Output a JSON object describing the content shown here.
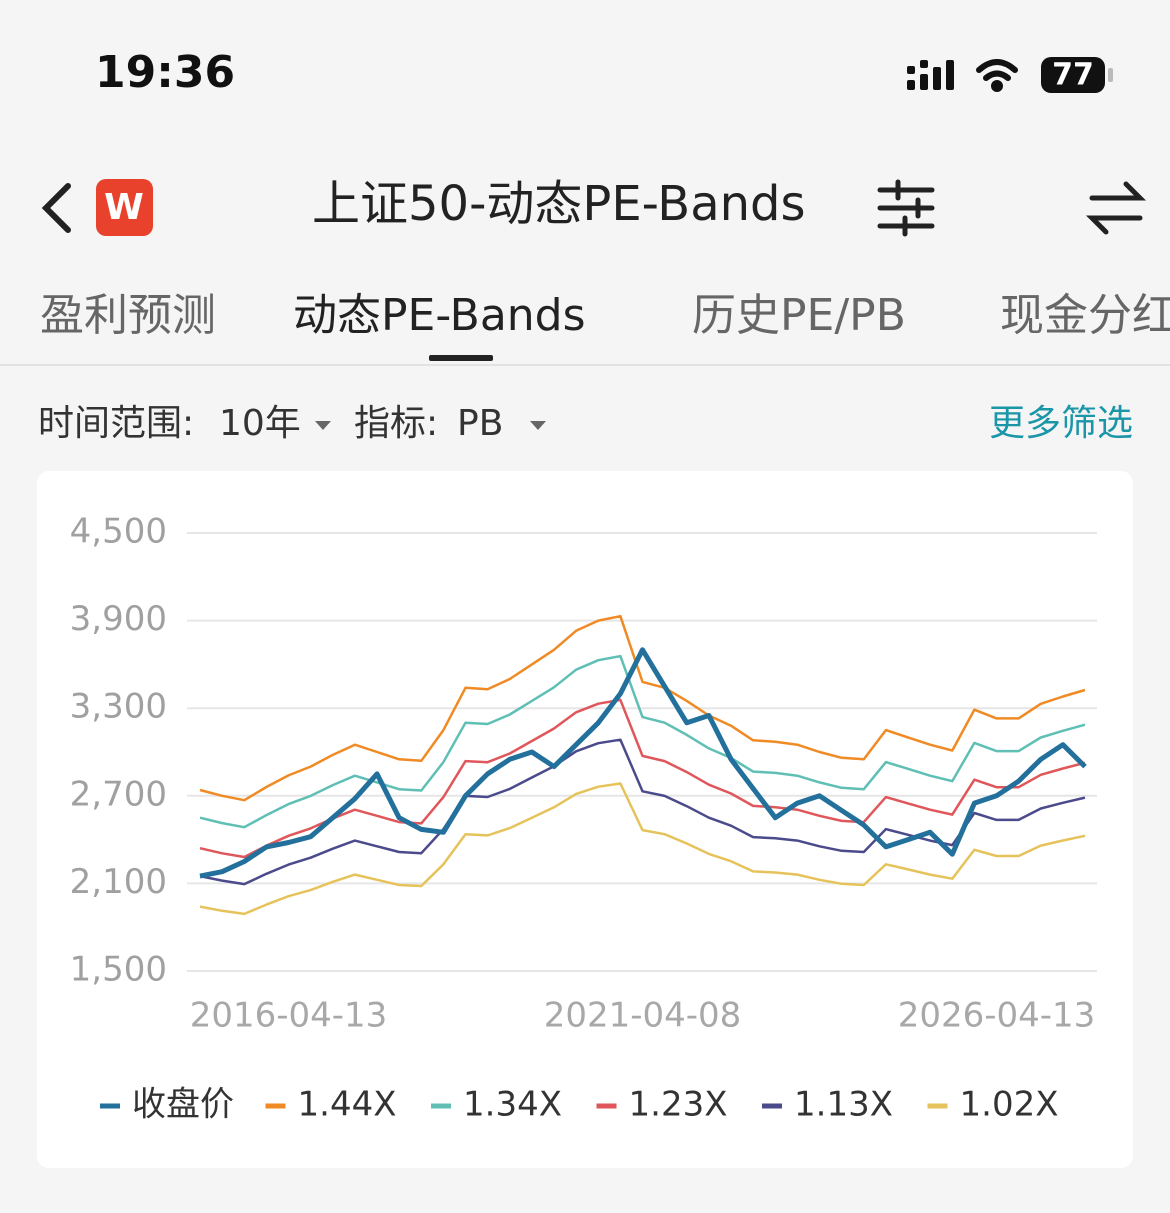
{
  "status_bar": {
    "time": "19:36",
    "battery": "77"
  },
  "header": {
    "app_icon": "W",
    "title": "上证50-动态PE-Bands"
  },
  "tabs": [
    "盈利预测",
    "动态PE-Bands",
    "历史PE/PB",
    "现金分红"
  ],
  "filters": {
    "time_range_label": "时间范围:",
    "time_range": "10年",
    "metric_label": "指标:",
    "metric": "PB",
    "more": "更多筛选"
  },
  "chart_data": {
    "type": "line",
    "categories": [
      null,
      null,
      null,
      null,
      "2016-04-13",
      null,
      null,
      null,
      null,
      null,
      null,
      null,
      null,
      null,
      null,
      null,
      null,
      null,
      null,
      null,
      "2021-04-08",
      null,
      null,
      null,
      null,
      null,
      null,
      null,
      null,
      null,
      null,
      null,
      null,
      null,
      null,
      null,
      "2026-04-13",
      null,
      null,
      null,
      null
    ],
    "ylim": [
      1500,
      4500
    ],
    "yticks": [
      {
        "value": 1500,
        "label": "1,500"
      },
      {
        "value": 2100,
        "label": "2,100"
      },
      {
        "value": 2700,
        "label": "2,700"
      },
      {
        "value": 3300,
        "label": "3,300"
      },
      {
        "value": 3900,
        "label": "3,900"
      },
      {
        "value": 4500,
        "label": "4,500"
      }
    ],
    "grid": true,
    "legend": "bottom",
    "series": [
      {
        "name": "收盘价",
        "color": "#22709b",
        "values": [
          2150,
          2180,
          2250,
          2350,
          2380,
          2420,
          2550,
          2680,
          2850,
          2550,
          2470,
          2450,
          2700,
          2850,
          2950,
          3000,
          2900,
          3050,
          3200,
          3400,
          3700,
          3450,
          3200,
          3250,
          2950,
          2750,
          2550,
          2650,
          2700,
          2600,
          2500,
          2350,
          2400,
          2450,
          2300,
          2650,
          2700,
          2800,
          2950,
          3050,
          2900
        ]
      },
      {
        "name": "1.44X",
        "color": "#f08a24",
        "values": [
          2740,
          2700,
          2670,
          2760,
          2840,
          2900,
          2980,
          3050,
          3000,
          2950,
          2940,
          3150,
          3440,
          3430,
          3500,
          3600,
          3700,
          3830,
          3900,
          3930,
          3480,
          3440,
          3350,
          3250,
          3180,
          3080,
          3070,
          3050,
          3000,
          2960,
          2950,
          3150,
          3100,
          3050,
          3010,
          3290,
          3230,
          3230,
          3330,
          3380,
          3425
        ]
      },
      {
        "name": "1.34X",
        "color": "#5fbfb5",
        "values": [
          2550,
          2513,
          2485,
          2568,
          2643,
          2699,
          2773,
          2838,
          2792,
          2745,
          2736,
          2931,
          3201,
          3192,
          3257,
          3350,
          3443,
          3564,
          3629,
          3657,
          3239,
          3201,
          3117,
          3025,
          2959,
          2866,
          2857,
          2838,
          2792,
          2755,
          2745,
          2931,
          2885,
          2838,
          2801,
          3062,
          3006,
          3006,
          3099,
          3145,
          3187
        ]
      },
      {
        "name": "1.23X",
        "color": "#e0575b",
        "values": [
          2341,
          2306,
          2281,
          2358,
          2426,
          2477,
          2545,
          2605,
          2563,
          2520,
          2511,
          2691,
          2938,
          2930,
          2990,
          3075,
          3161,
          3272,
          3331,
          3357,
          2973,
          2938,
          2862,
          2776,
          2716,
          2631,
          2622,
          2605,
          2563,
          2528,
          2520,
          2691,
          2648,
          2605,
          2571,
          2810,
          2759,
          2759,
          2844,
          2887,
          2926
        ]
      },
      {
        "name": "1.13X",
        "color": "#4b4b8c",
        "values": [
          2150,
          2119,
          2095,
          2166,
          2229,
          2276,
          2338,
          2393,
          2354,
          2315,
          2307,
          2472,
          2699,
          2692,
          2747,
          2825,
          2903,
          3005,
          3060,
          3084,
          2731,
          2699,
          2629,
          2550,
          2495,
          2417,
          2409,
          2393,
          2354,
          2323,
          2315,
          2472,
          2433,
          2393,
          2362,
          2582,
          2535,
          2535,
          2613,
          2652,
          2688
        ]
      },
      {
        "name": "1.02X",
        "color": "#e6c35a",
        "values": [
          1941,
          1912,
          1891,
          1955,
          2012,
          2054,
          2111,
          2160,
          2125,
          2089,
          2082,
          2231,
          2437,
          2429,
          2479,
          2550,
          2621,
          2713,
          2762,
          2784,
          2465,
          2437,
          2373,
          2302,
          2252,
          2182,
          2175,
          2160,
          2125,
          2097,
          2089,
          2231,
          2196,
          2160,
          2132,
          2330,
          2288,
          2288,
          2359,
          2394,
          2426
        ]
      }
    ]
  }
}
